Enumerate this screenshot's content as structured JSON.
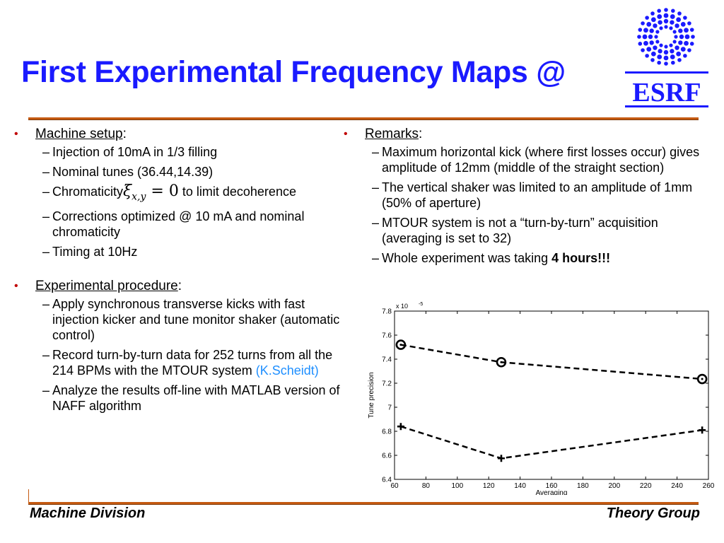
{
  "slide": {
    "title": "First Experimental Frequency Maps @",
    "logo_text": "ESRF"
  },
  "left": {
    "section1": {
      "heading": "Machine setup",
      "suffix": ":",
      "items": [
        "Injection of 10mA in 1/3 filling",
        "Nominal tunes (36.44,14.39)",
        "Chromaticity",
        "to limit decoherence",
        "Corrections optimized @ 10 mA and nominal chromaticity",
        "Timing at 10Hz"
      ],
      "math": {
        "symbol": "ξ",
        "subscript": "x,y",
        "relation": "= 0"
      }
    },
    "section2": {
      "heading": "Experimental procedure",
      "suffix": ":",
      "items": [
        "Apply synchronous transverse kicks with fast injection kicker and tune monitor shaker (automatic control)",
        "Record turn-by-turn data for 252 turns from all the 214 BPMs with the MTOUR system",
        "(K.Scheidt)",
        "Analyze the results off-line with MATLAB version of NAFF algorithm"
      ]
    }
  },
  "right": {
    "heading": "Remarks",
    "suffix": ":",
    "items": [
      "Maximum horizontal kick (where first losses occur) gives amplitude of 12mm (middle of the straight section)",
      "The vertical shaker was limited to an amplitude of 1mm (50% of aperture)",
      "MTOUR system is not a “turn-by-turn” acquisition (averaging is set to 32)",
      "Whole experiment was taking",
      "4 hours!!!"
    ]
  },
  "chart_data": {
    "type": "line",
    "xlabel": "Averaging",
    "ylabel": "Tune precision",
    "y_multiplier": "x 10",
    "y_exponent": "-5",
    "xlim": [
      60,
      260
    ],
    "ylim": [
      6.4,
      7.8
    ],
    "xticks": [
      60,
      80,
      100,
      120,
      140,
      160,
      180,
      200,
      220,
      240,
      260
    ],
    "yticks": [
      6.4,
      6.6,
      6.8,
      7.0,
      7.2,
      7.4,
      7.6,
      7.8
    ],
    "ytick_labels": [
      "6.4",
      "6.6",
      "6.8",
      "7",
      "7.2",
      "7.4",
      "7.6",
      "7.8"
    ],
    "grid": false,
    "series": [
      {
        "marker": "circle",
        "x": [
          64,
          128,
          256
        ],
        "y": [
          7.52,
          7.375,
          7.235
        ]
      },
      {
        "marker": "plus",
        "x": [
          64,
          128,
          256
        ],
        "y": [
          6.84,
          6.575,
          6.81
        ]
      }
    ]
  },
  "footer": {
    "left": "Machine Division",
    "right": "Theory Group"
  },
  "colors": {
    "title": "#1a1aff",
    "bullet": "#c00000",
    "rule": "#c55a11",
    "link": "#1f8fff",
    "logo": "#1a1aff"
  }
}
